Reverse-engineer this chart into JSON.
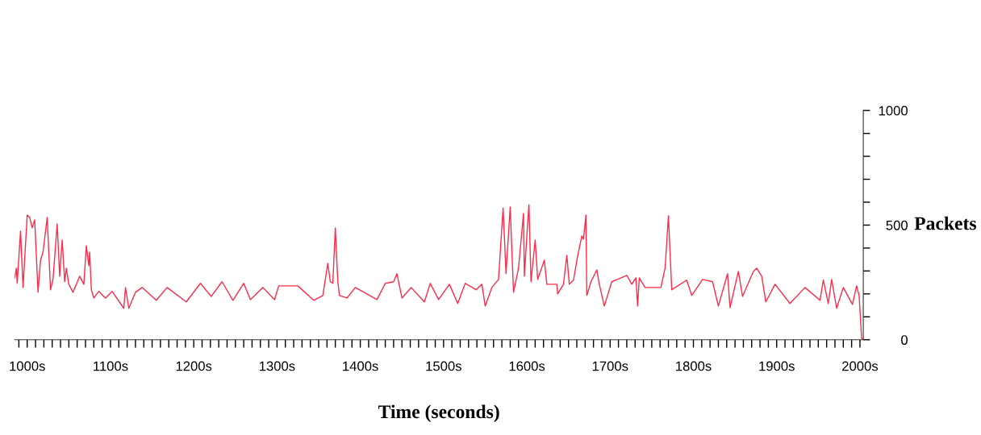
{
  "chart_data": {
    "type": "line",
    "xlabel": "Time (seconds)",
    "ylabel": "Packets",
    "xlim": [
      985,
      2004
    ],
    "ylim": [
      0,
      1000
    ],
    "xticks": [
      {
        "value": 990,
        "label": null
      },
      {
        "value": 1000,
        "label": "1000s"
      },
      {
        "value": 1010,
        "label": null
      },
      {
        "value": 1020,
        "label": null
      },
      {
        "value": 1030,
        "label": null
      },
      {
        "value": 1040,
        "label": null
      },
      {
        "value": 1050,
        "label": null
      },
      {
        "value": 1060,
        "label": null
      },
      {
        "value": 1070,
        "label": null
      },
      {
        "value": 1080,
        "label": null
      },
      {
        "value": 1090,
        "label": null
      },
      {
        "value": 1100,
        "label": "1100s"
      },
      {
        "value": 1110,
        "label": null
      },
      {
        "value": 1120,
        "label": null
      },
      {
        "value": 1130,
        "label": null
      },
      {
        "value": 1140,
        "label": null
      },
      {
        "value": 1150,
        "label": null
      },
      {
        "value": 1160,
        "label": null
      },
      {
        "value": 1170,
        "label": null
      },
      {
        "value": 1180,
        "label": null
      },
      {
        "value": 1190,
        "label": null
      },
      {
        "value": 1200,
        "label": "1200s"
      },
      {
        "value": 1210,
        "label": null
      },
      {
        "value": 1220,
        "label": null
      },
      {
        "value": 1230,
        "label": null
      },
      {
        "value": 1240,
        "label": null
      },
      {
        "value": 1250,
        "label": null
      },
      {
        "value": 1260,
        "label": null
      },
      {
        "value": 1270,
        "label": null
      },
      {
        "value": 1280,
        "label": null
      },
      {
        "value": 1290,
        "label": null
      },
      {
        "value": 1300,
        "label": "1300s"
      },
      {
        "value": 1310,
        "label": null
      },
      {
        "value": 1320,
        "label": null
      },
      {
        "value": 1330,
        "label": null
      },
      {
        "value": 1340,
        "label": null
      },
      {
        "value": 1350,
        "label": null
      },
      {
        "value": 1360,
        "label": null
      },
      {
        "value": 1370,
        "label": null
      },
      {
        "value": 1380,
        "label": null
      },
      {
        "value": 1390,
        "label": null
      },
      {
        "value": 1400,
        "label": "1400s"
      },
      {
        "value": 1410,
        "label": null
      },
      {
        "value": 1420,
        "label": null
      },
      {
        "value": 1430,
        "label": null
      },
      {
        "value": 1440,
        "label": null
      },
      {
        "value": 1450,
        "label": null
      },
      {
        "value": 1460,
        "label": null
      },
      {
        "value": 1470,
        "label": null
      },
      {
        "value": 1480,
        "label": null
      },
      {
        "value": 1490,
        "label": null
      },
      {
        "value": 1500,
        "label": "1500s"
      },
      {
        "value": 1510,
        "label": null
      },
      {
        "value": 1520,
        "label": null
      },
      {
        "value": 1530,
        "label": null
      },
      {
        "value": 1540,
        "label": null
      },
      {
        "value": 1550,
        "label": null
      },
      {
        "value": 1560,
        "label": null
      },
      {
        "value": 1570,
        "label": null
      },
      {
        "value": 1580,
        "label": null
      },
      {
        "value": 1590,
        "label": null
      },
      {
        "value": 1600,
        "label": "1600s"
      },
      {
        "value": 1610,
        "label": null
      },
      {
        "value": 1620,
        "label": null
      },
      {
        "value": 1630,
        "label": null
      },
      {
        "value": 1640,
        "label": null
      },
      {
        "value": 1650,
        "label": null
      },
      {
        "value": 1660,
        "label": null
      },
      {
        "value": 1670,
        "label": null
      },
      {
        "value": 1680,
        "label": null
      },
      {
        "value": 1690,
        "label": null
      },
      {
        "value": 1700,
        "label": "1700s"
      },
      {
        "value": 1710,
        "label": null
      },
      {
        "value": 1720,
        "label": null
      },
      {
        "value": 1730,
        "label": null
      },
      {
        "value": 1740,
        "label": null
      },
      {
        "value": 1750,
        "label": null
      },
      {
        "value": 1760,
        "label": null
      },
      {
        "value": 1770,
        "label": null
      },
      {
        "value": 1780,
        "label": null
      },
      {
        "value": 1790,
        "label": null
      },
      {
        "value": 1800,
        "label": "1800s"
      },
      {
        "value": 1810,
        "label": null
      },
      {
        "value": 1820,
        "label": null
      },
      {
        "value": 1830,
        "label": null
      },
      {
        "value": 1840,
        "label": null
      },
      {
        "value": 1850,
        "label": null
      },
      {
        "value": 1860,
        "label": null
      },
      {
        "value": 1870,
        "label": null
      },
      {
        "value": 1880,
        "label": null
      },
      {
        "value": 1890,
        "label": null
      },
      {
        "value": 1900,
        "label": "1900s"
      },
      {
        "value": 1910,
        "label": null
      },
      {
        "value": 1920,
        "label": null
      },
      {
        "value": 1930,
        "label": null
      },
      {
        "value": 1940,
        "label": null
      },
      {
        "value": 1950,
        "label": null
      },
      {
        "value": 1960,
        "label": null
      },
      {
        "value": 1970,
        "label": null
      },
      {
        "value": 1980,
        "label": null
      },
      {
        "value": 1990,
        "label": null
      },
      {
        "value": 2000,
        "label": "2000s"
      }
    ],
    "yticks": [
      0,
      {
        "value": 100,
        "label": null
      },
      {
        "value": 200,
        "label": null
      },
      {
        "value": 300,
        "label": null
      },
      {
        "value": 400,
        "label": null
      },
      500,
      {
        "value": 600,
        "label": null
      },
      {
        "value": 700,
        "label": null
      },
      {
        "value": 800,
        "label": null
      },
      {
        "value": 900,
        "label": null
      },
      1000
    ],
    "grid": false,
    "marker": "none",
    "line_style": "solid",
    "series": [
      {
        "color": "#ff2a48",
        "x": [
          985,
          987,
          988,
          992,
          995,
          1000,
          1003,
          1006,
          1009,
          1013,
          1016,
          1019,
          1024,
          1028,
          1031,
          1036,
          1039,
          1042,
          1045,
          1047,
          1050,
          1055,
          1063,
          1068,
          1071,
          1074,
          1075,
          1077,
          1080,
          1086,
          1094,
          1102,
          1116,
          1118,
          1122,
          1130,
          1138,
          1155,
          1168,
          1191,
          1208,
          1221,
          1234,
          1247,
          1260,
          1268,
          1283,
          1297,
          1302,
          1325,
          1344,
          1355,
          1361,
          1364,
          1367,
          1370,
          1373,
          1375,
          1384,
          1394,
          1420,
          1430,
          1440,
          1444,
          1450,
          1461,
          1477,
          1484,
          1494,
          1507,
          1517,
          1526,
          1539,
          1546,
          1550,
          1558,
          1566,
          1571.5,
          1575,
          1580,
          1584,
          1590,
          1596,
          1597,
          1600,
          1602.5,
          1605,
          1610,
          1613,
          1621,
          1624,
          1636,
          1637,
          1644,
          1648,
          1651,
          1656,
          1661,
          1666,
          1668,
          1671,
          1672,
          1677,
          1684,
          1687,
          1693,
          1702,
          1720,
          1726,
          1731,
          1733,
          1735,
          1742,
          1761,
          1766,
          1770,
          1774,
          1792,
          1798,
          1811,
          1823,
          1830,
          1841,
          1844,
          1854,
          1859,
          1872,
          1876,
          1882,
          1887,
          1898,
          1916,
          1934,
          1952,
          1956,
          1962,
          1966,
          1972,
          1980,
          1991,
          1996,
          1999,
          2002,
          2004
        ],
        "values": [
          270,
          312,
          246,
          474,
          228,
          544,
          533,
          488,
          523,
          207,
          347,
          382,
          533,
          218,
          263,
          505,
          277,
          435,
          253,
          312,
          242,
          207,
          277,
          242,
          410,
          323,
          382,
          218,
          182,
          211,
          182,
          211,
          137,
          228,
          137,
          207,
          228,
          172,
          228,
          165,
          246,
          189,
          253,
          172,
          246,
          175,
          228,
          175,
          235,
          235,
          172,
          193,
          333,
          253,
          246,
          488,
          253,
          193,
          182,
          228,
          175,
          246,
          253,
          288,
          182,
          228,
          165,
          246,
          175,
          242,
          158,
          246,
          218,
          242,
          147,
          228,
          263,
          575,
          288,
          579,
          207,
          312,
          551,
          277,
          453,
          589,
          253,
          435,
          263,
          347,
          242,
          242,
          200,
          242,
          368,
          242,
          260,
          365,
          453,
          439,
          544,
          193,
          253,
          305,
          242,
          147,
          253,
          281,
          242,
          270,
          147,
          270,
          228,
          228,
          312,
          540,
          218,
          260,
          193,
          263,
          253,
          147,
          288,
          140,
          298,
          189,
          298,
          312,
          277,
          165,
          242,
          158,
          228,
          172,
          260,
          158,
          263,
          137,
          228,
          154,
          235,
          193,
          7,
          0
        ]
      }
    ]
  }
}
